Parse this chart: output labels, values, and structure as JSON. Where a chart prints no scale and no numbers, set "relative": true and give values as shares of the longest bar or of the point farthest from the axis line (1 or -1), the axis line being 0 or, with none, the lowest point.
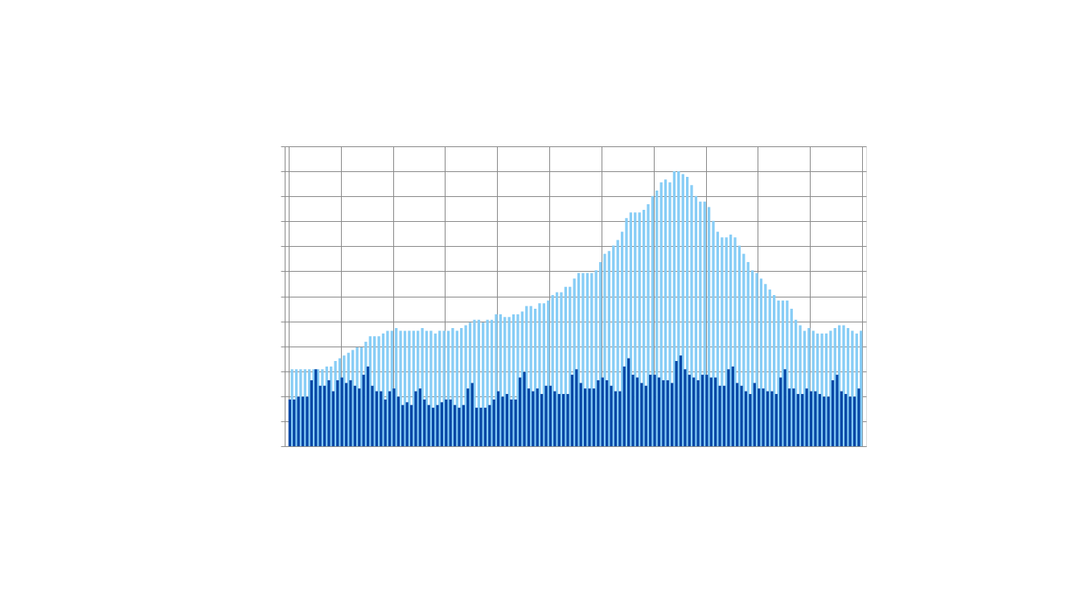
{
  "chart_data": {
    "type": "bar",
    "relative": true,
    "grid": true,
    "tick_labels": false,
    "categories": [
      null,
      null,
      null,
      null,
      null,
      null,
      null,
      null,
      null,
      null,
      null,
      null,
      null,
      null,
      null,
      null,
      null,
      null,
      null,
      null,
      null,
      null,
      null,
      null,
      null,
      null,
      null,
      null,
      null,
      null,
      null,
      null,
      null,
      null,
      null,
      null,
      null,
      null,
      null,
      null,
      null,
      null,
      null,
      null,
      null,
      null,
      null,
      null,
      null,
      null,
      null,
      null,
      null,
      null,
      null,
      null,
      null,
      null,
      null,
      null,
      null,
      null,
      null,
      null,
      null,
      null,
      null,
      null,
      null,
      null,
      null,
      null,
      null,
      null,
      null,
      null,
      null,
      null,
      null,
      null,
      null,
      null,
      null,
      null,
      null,
      null,
      null,
      null,
      null,
      null,
      null,
      null,
      null,
      null,
      null,
      null,
      null,
      null,
      null,
      null,
      null,
      null,
      null,
      null,
      null,
      null,
      null,
      null,
      null,
      null,
      null,
      null,
      null,
      null,
      null,
      null,
      null,
      null,
      null,
      null,
      null,
      null,
      null,
      null,
      null,
      null,
      null,
      null,
      null,
      null,
      null,
      null
    ],
    "series": [
      {
        "color": "#0747a6",
        "values": [
          0.17,
          0.17,
          0.18,
          0.18,
          0.18,
          0.24,
          0.28,
          0.22,
          0.22,
          0.24,
          0.2,
          0.24,
          0.25,
          0.23,
          0.24,
          0.22,
          0.21,
          0.26,
          0.29,
          0.22,
          0.2,
          0.2,
          0.17,
          0.2,
          0.21,
          0.18,
          0.15,
          0.16,
          0.15,
          0.2,
          0.21,
          0.17,
          0.15,
          0.14,
          0.15,
          0.16,
          0.17,
          0.17,
          0.15,
          0.14,
          0.15,
          0.21,
          0.23,
          0.14,
          0.14,
          0.14,
          0.15,
          0.17,
          0.2,
          0.18,
          0.19,
          0.17,
          0.17,
          0.25,
          0.27,
          0.21,
          0.2,
          0.21,
          0.19,
          0.22,
          0.22,
          0.2,
          0.19,
          0.19,
          0.19,
          0.26,
          0.28,
          0.23,
          0.21,
          0.21,
          0.21,
          0.24,
          0.25,
          0.24,
          0.22,
          0.2,
          0.2,
          0.29,
          0.32,
          0.26,
          0.25,
          0.23,
          0.22,
          0.26,
          0.26,
          0.25,
          0.24,
          0.24,
          0.23,
          0.31,
          0.33,
          0.28,
          0.26,
          0.25,
          0.24,
          0.26,
          0.26,
          0.25,
          0.25,
          0.22,
          0.22,
          0.28,
          0.29,
          0.23,
          0.22,
          0.2,
          0.19,
          0.23,
          0.21,
          0.21,
          0.2,
          0.2,
          0.19,
          0.25,
          0.28,
          0.21,
          0.21,
          0.19,
          0.19,
          0.21,
          0.2,
          0.2,
          0.19,
          0.18,
          0.18,
          0.24,
          0.26,
          0.2,
          0.19,
          0.18,
          0.18,
          0.21
        ]
      },
      {
        "color": "#87cdf6",
        "values": [
          0.28,
          0.28,
          0.28,
          0.28,
          0.28,
          0.28,
          0.28,
          0.28,
          0.29,
          0.29,
          0.31,
          0.32,
          0.33,
          0.34,
          0.35,
          0.36,
          0.36,
          0.38,
          0.4,
          0.4,
          0.4,
          0.41,
          0.42,
          0.42,
          0.43,
          0.42,
          0.42,
          0.42,
          0.42,
          0.42,
          0.43,
          0.42,
          0.42,
          0.41,
          0.42,
          0.42,
          0.42,
          0.43,
          0.42,
          0.43,
          0.44,
          0.45,
          0.46,
          0.46,
          0.45,
          0.46,
          0.46,
          0.48,
          0.48,
          0.47,
          0.47,
          0.48,
          0.48,
          0.49,
          0.51,
          0.51,
          0.5,
          0.52,
          0.52,
          0.53,
          0.55,
          0.56,
          0.56,
          0.58,
          0.58,
          0.61,
          0.63,
          0.63,
          0.63,
          0.63,
          0.64,
          0.67,
          0.7,
          0.71,
          0.73,
          0.75,
          0.78,
          0.83,
          0.85,
          0.85,
          0.85,
          0.86,
          0.88,
          0.91,
          0.93,
          0.96,
          0.97,
          0.96,
          1.0,
          1.0,
          0.99,
          0.98,
          0.95,
          0.91,
          0.89,
          0.89,
          0.87,
          0.82,
          0.78,
          0.76,
          0.76,
          0.77,
          0.76,
          0.73,
          0.7,
          0.67,
          0.64,
          0.63,
          0.61,
          0.59,
          0.57,
          0.55,
          0.53,
          0.53,
          0.53,
          0.5,
          0.46,
          0.44,
          0.42,
          0.43,
          0.42,
          0.41,
          0.41,
          0.41,
          0.42,
          0.43,
          0.44,
          0.44,
          0.43,
          0.42,
          0.41,
          0.42
        ]
      }
    ]
  }
}
